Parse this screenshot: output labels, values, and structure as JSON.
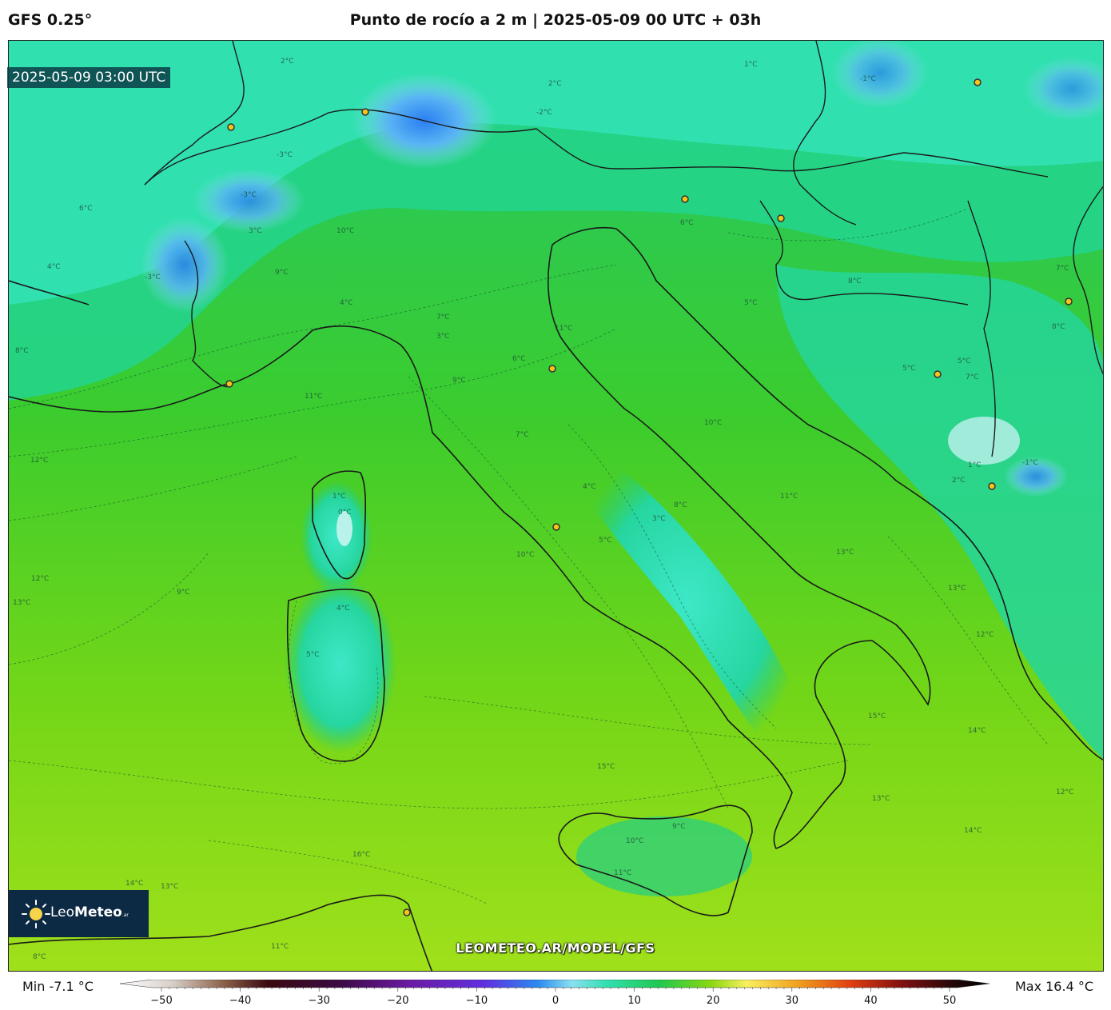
{
  "header": {
    "model": "GFS 0.25°",
    "title": "Punto de rocío a 2 m | 2025-05-09 00 UTC + 03h"
  },
  "map": {
    "valid_time": "2025-05-09 03:00 UTC",
    "source_url": "LEOMETEO.AR/MODEL/GFS",
    "logo": {
      "name": "Leo",
      "name_bold": "Meteo",
      "suffix": ".ar"
    },
    "isolines": [
      {
        "label": "2°C"
      },
      {
        "label": "1°C"
      },
      {
        "label": "-1°C"
      },
      {
        "label": "2°C"
      },
      {
        "label": "-2°C"
      },
      {
        "label": "-3°C"
      },
      {
        "label": "-3°C"
      },
      {
        "label": "-3°C"
      },
      {
        "label": "6°C"
      },
      {
        "label": "3°C"
      },
      {
        "label": "4°C"
      },
      {
        "label": "8°C"
      },
      {
        "label": "10°C"
      },
      {
        "label": "9°C"
      },
      {
        "label": "4°C"
      },
      {
        "label": "7°C"
      },
      {
        "label": "3°C"
      },
      {
        "label": "11°C"
      },
      {
        "label": "9°C"
      },
      {
        "label": "11°C"
      },
      {
        "label": "6°C"
      },
      {
        "label": "6°C"
      },
      {
        "label": "8°C"
      },
      {
        "label": "7°C"
      },
      {
        "label": "5°C"
      },
      {
        "label": "12°C"
      },
      {
        "label": "1°C"
      },
      {
        "label": "0°C"
      },
      {
        "label": "7°C"
      },
      {
        "label": "10°C"
      },
      {
        "label": "4°C"
      },
      {
        "label": "3°C"
      },
      {
        "label": "8°C"
      },
      {
        "label": "5°C"
      },
      {
        "label": "12°C"
      },
      {
        "label": "9°C"
      },
      {
        "label": "10°C"
      },
      {
        "label": "4°C"
      },
      {
        "label": "5°C"
      },
      {
        "label": "13°C"
      },
      {
        "label": "11°C"
      },
      {
        "label": "13°C"
      },
      {
        "label": "13°C"
      },
      {
        "label": "12°C"
      },
      {
        "label": "14°C"
      },
      {
        "label": "15°C"
      },
      {
        "label": "15°C"
      },
      {
        "label": "16°C"
      },
      {
        "label": "14°C"
      },
      {
        "label": "13°C"
      },
      {
        "label": "10°C"
      },
      {
        "label": "9°C"
      },
      {
        "label": "11°C"
      },
      {
        "label": "14°C"
      },
      {
        "label": "13°C"
      },
      {
        "label": "5°C"
      },
      {
        "label": "7°C"
      },
      {
        "label": "5°C"
      },
      {
        "label": "-1°C"
      },
      {
        "label": "1°C"
      },
      {
        "label": "2°C"
      },
      {
        "label": "8°C"
      },
      {
        "label": "12°C"
      },
      {
        "label": "8°C"
      },
      {
        "label": "11°C"
      }
    ]
  },
  "colorbar": {
    "min_label": "Min -7.1 °C",
    "max_label": "Max 16.4 °C",
    "ticks": [
      "−50",
      "−40",
      "−30",
      "−20",
      "−10",
      "0",
      "10",
      "20",
      "30",
      "40",
      "50"
    ],
    "range": [
      -50,
      50
    ]
  },
  "colors": {
    "sea_warm": "#8fd81a",
    "land_green": "#2fcf5a",
    "cool_teal": "#37e8c0",
    "cold_blue": "#3a9af0",
    "coast": "#1a1a1a"
  }
}
